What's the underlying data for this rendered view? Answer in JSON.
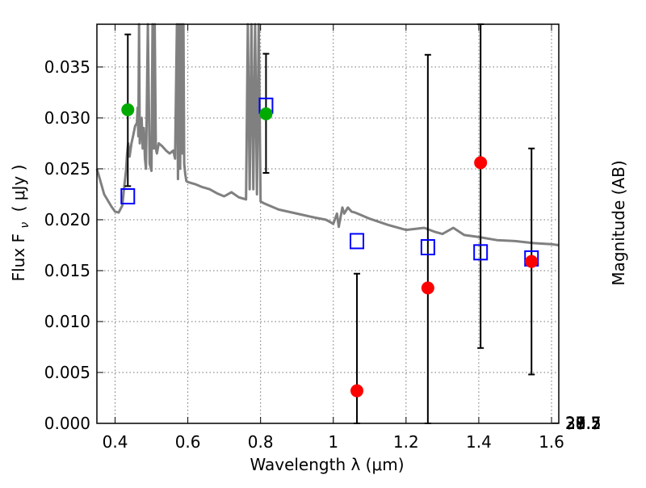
{
  "chart_data": {
    "type": "scatter",
    "xlabel": "Wavelength  λ (μm)",
    "ylabel": "Flux  F",
    "ylabel_sub": "ν",
    "ylabel_unit": "( μJy )",
    "y2label": "Magnitude (AB)",
    "xlim": [
      0.35,
      1.62
    ],
    "ylim": [
      0.0,
      0.0392
    ],
    "grid": true,
    "x_ticks": [
      {
        "value": 0.4,
        "label": "0.4"
      },
      {
        "value": 0.6,
        "label": "0.6"
      },
      {
        "value": 0.8,
        "label": "0.8"
      },
      {
        "value": 1.0,
        "label": "1"
      },
      {
        "value": 1.2,
        "label": "1.2"
      },
      {
        "value": 1.4,
        "label": "1.4"
      },
      {
        "value": 1.6,
        "label": "1.6"
      }
    ],
    "y_ticks": [
      {
        "value": 0.0,
        "label": "0.000"
      },
      {
        "value": 0.005,
        "label": "0.005"
      },
      {
        "value": 0.01,
        "label": "0.010"
      },
      {
        "value": 0.015,
        "label": "0.015"
      },
      {
        "value": 0.02,
        "label": "0.020"
      },
      {
        "value": 0.025,
        "label": "0.025"
      },
      {
        "value": 0.03,
        "label": "0.030"
      },
      {
        "value": 0.035,
        "label": "0.035"
      }
    ],
    "y2_ticks": [
      {
        "value": 27.5,
        "label": "27.5"
      },
      {
        "value": 27.7,
        "label": "27.7"
      },
      {
        "value": 28.0,
        "label": "28"
      },
      {
        "value": 28.2,
        "label": "28.2"
      },
      {
        "value": 28.5,
        "label": "28.5"
      },
      {
        "value": 29.0,
        "label": "29"
      },
      {
        "value": 29.5,
        "label": "29.5"
      },
      {
        "value": 30.0,
        "label": "30"
      },
      {
        "value": 31.0,
        "label": "31"
      }
    ],
    "colors": {
      "model": "#808080",
      "model_points": "#0000ff",
      "detections": "#00aa00",
      "low_snr": "#ff0000",
      "errorbar": "#000000"
    },
    "model_spectrum": {
      "x": [
        0.35,
        0.37,
        0.39,
        0.4,
        0.41,
        0.42,
        0.425,
        0.43,
        0.433,
        0.436,
        0.44,
        0.445,
        0.45,
        0.455,
        0.46,
        0.462,
        0.464,
        0.466,
        0.468,
        0.47,
        0.473,
        0.476,
        0.479,
        0.482,
        0.485,
        0.49,
        0.495,
        0.5,
        0.503,
        0.506,
        0.509,
        0.512,
        0.515,
        0.52,
        0.53,
        0.54,
        0.55,
        0.56,
        0.565,
        0.57,
        0.573,
        0.576,
        0.579,
        0.582,
        0.585,
        0.588,
        0.59,
        0.593,
        0.596,
        0.6,
        0.62,
        0.64,
        0.66,
        0.68,
        0.7,
        0.72,
        0.74,
        0.75,
        0.76,
        0.765,
        0.77,
        0.775,
        0.78,
        0.785,
        0.79,
        0.795,
        0.8,
        0.81,
        0.85,
        0.9,
        0.95,
        0.98,
        1.0,
        1.01,
        1.015,
        1.025,
        1.03,
        1.04,
        1.05,
        1.06,
        1.08,
        1.1,
        1.15,
        1.2,
        1.25,
        1.28,
        1.3,
        1.33,
        1.36,
        1.4,
        1.45,
        1.5,
        1.55,
        1.6,
        1.62
      ],
      "y": [
        0.025,
        0.0225,
        0.0213,
        0.0208,
        0.0207,
        0.0214,
        0.0232,
        0.0248,
        0.0265,
        0.0275,
        0.0262,
        0.0275,
        0.0283,
        0.0292,
        0.0295,
        0.031,
        0.0282,
        0.0392,
        0.0275,
        0.029,
        0.03,
        0.027,
        0.029,
        0.026,
        0.025,
        0.0392,
        0.0255,
        0.0248,
        0.0392,
        0.027,
        0.0392,
        0.027,
        0.0265,
        0.0275,
        0.0272,
        0.0268,
        0.0265,
        0.0268,
        0.026,
        0.0392,
        0.024,
        0.0392,
        0.025,
        0.0392,
        0.0265,
        0.0392,
        0.0255,
        0.0245,
        0.0238,
        0.0237,
        0.0235,
        0.0232,
        0.023,
        0.0226,
        0.0223,
        0.0227,
        0.0222,
        0.0221,
        0.022,
        0.0392,
        0.023,
        0.0392,
        0.023,
        0.0392,
        0.0225,
        0.0392,
        0.0218,
        0.0216,
        0.021,
        0.0206,
        0.0202,
        0.02,
        0.0196,
        0.0206,
        0.0193,
        0.0212,
        0.0206,
        0.0212,
        0.0208,
        0.0207,
        0.0204,
        0.0201,
        0.0195,
        0.019,
        0.0192,
        0.0188,
        0.0186,
        0.0192,
        0.0185,
        0.0183,
        0.018,
        0.0179,
        0.0177,
        0.0176,
        0.0175
      ]
    },
    "series": [
      {
        "marker": "square-open",
        "color": "#0000ff",
        "points": [
          {
            "x": 0.435,
            "y": 0.0223
          },
          {
            "x": 0.815,
            "y": 0.0312
          },
          {
            "x": 1.065,
            "y": 0.0179
          },
          {
            "x": 1.26,
            "y": 0.0173
          },
          {
            "x": 1.405,
            "y": 0.0168
          },
          {
            "x": 1.545,
            "y": 0.0162
          }
        ]
      },
      {
        "marker": "circle-filled",
        "color": "#00aa00",
        "points": [
          {
            "x": 0.435,
            "y": 0.0308,
            "yerr_lo": 0.0233,
            "yerr_hi": 0.0382
          },
          {
            "x": 0.815,
            "y": 0.0304,
            "yerr_lo": 0.0246,
            "yerr_hi": 0.0363
          }
        ]
      },
      {
        "marker": "circle-filled",
        "color": "#ff0000",
        "points": [
          {
            "x": 1.065,
            "y": 0.0032,
            "yerr_lo": 0.0,
            "yerr_hi": 0.0147
          },
          {
            "x": 1.26,
            "y": 0.0133,
            "yerr_lo": 0.0,
            "yerr_hi": 0.0362
          },
          {
            "x": 1.405,
            "y": 0.0256,
            "yerr_lo": 0.0074,
            "yerr_hi": 0.0392
          },
          {
            "x": 1.545,
            "y": 0.0159,
            "yerr_lo": 0.0048,
            "yerr_hi": 0.027
          }
        ]
      }
    ]
  }
}
